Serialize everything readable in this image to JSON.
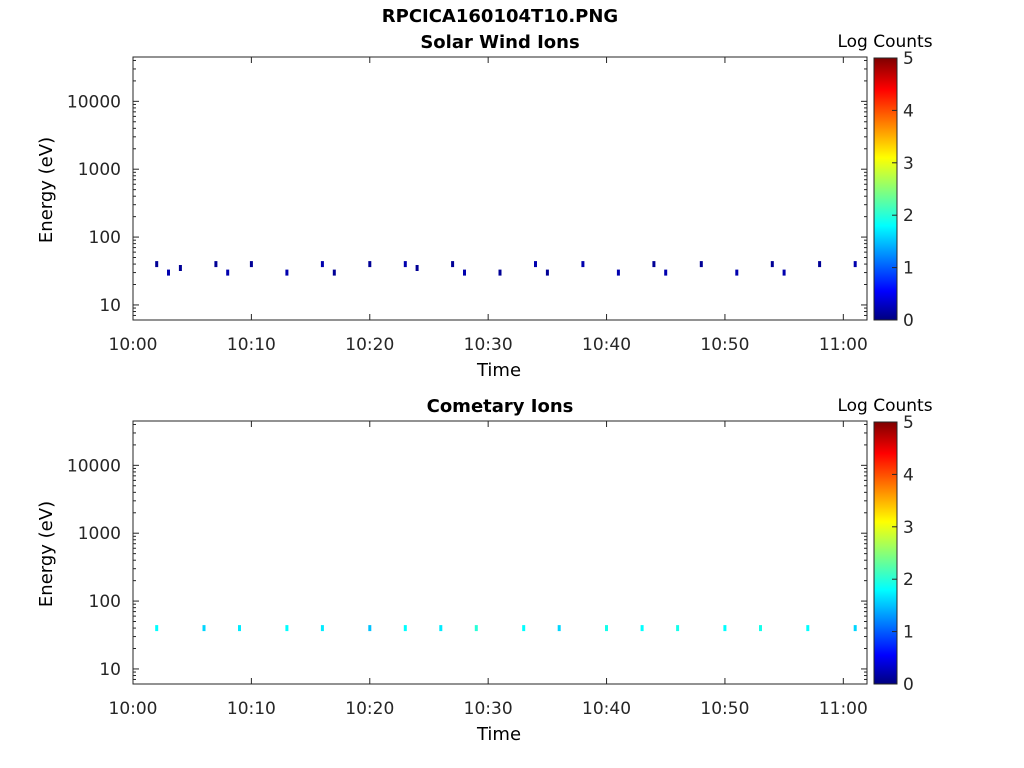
{
  "figure": {
    "title": "RPCICA160104T10.PNG"
  },
  "colors": {
    "axis": "#262626",
    "background": "#ffffff",
    "colormap": [
      "#00007f",
      "#0000ff",
      "#00ffff",
      "#ffff00",
      "#ff0000",
      "#7f0000"
    ]
  },
  "chart_data": [
    {
      "type": "heatmap",
      "title": "Solar Wind Ions",
      "xlabel": "Time",
      "ylabel": "Energy (eV)",
      "y_scale": "log",
      "xlim": [
        "10:00",
        "11:02"
      ],
      "ylim": [
        6,
        45000
      ],
      "x_ticks": [
        "10:00",
        "10:10",
        "10:20",
        "10:30",
        "10:40",
        "10:50",
        "11:00"
      ],
      "y_ticks": [
        10,
        100,
        1000,
        10000
      ],
      "y_tick_labels": [
        "10",
        "100",
        "1000",
        "10000"
      ],
      "colorbar": {
        "label": "Log Counts",
        "range": [
          0,
          5
        ],
        "ticks": [
          "0",
          "1",
          "2",
          "3",
          "4",
          "5"
        ]
      },
      "series": [
        {
          "values": [
            [
              "10:02",
              40,
              0.1
            ],
            [
              "10:03",
              30,
              0.2
            ],
            [
              "10:04",
              35,
              0.1
            ],
            [
              "10:07",
              40,
              0.1
            ],
            [
              "10:08",
              30,
              0.2
            ],
            [
              "10:10",
              40,
              0.1
            ],
            [
              "10:13",
              30,
              0.2
            ],
            [
              "10:16",
              40,
              0.2
            ],
            [
              "10:17",
              30,
              0.1
            ],
            [
              "10:20",
              40,
              0.1
            ],
            [
              "10:23",
              40,
              0.2
            ],
            [
              "10:24",
              35,
              0.1
            ],
            [
              "10:27",
              40,
              0.1
            ],
            [
              "10:28",
              30,
              0.2
            ],
            [
              "10:31",
              30,
              0.1
            ],
            [
              "10:34",
              40,
              0.2
            ],
            [
              "10:35",
              30,
              0.1
            ],
            [
              "10:38",
              40,
              0.2
            ],
            [
              "10:41",
              30,
              0.2
            ],
            [
              "10:44",
              40,
              0.1
            ],
            [
              "10:45",
              30,
              0.2
            ],
            [
              "10:48",
              40,
              0.1
            ],
            [
              "10:51",
              30,
              0.2
            ],
            [
              "10:54",
              40,
              0.1
            ],
            [
              "10:55",
              30,
              0.2
            ],
            [
              "10:58",
              40,
              0.1
            ],
            [
              "11:01",
              40,
              0.2
            ]
          ]
        }
      ]
    },
    {
      "type": "heatmap",
      "title": "Cometary Ions",
      "xlabel": "Time",
      "ylabel": "Energy (eV)",
      "y_scale": "log",
      "xlim": [
        "10:00",
        "11:02"
      ],
      "ylim": [
        6,
        45000
      ],
      "x_ticks": [
        "10:00",
        "10:10",
        "10:20",
        "10:30",
        "10:40",
        "10:50",
        "11:00"
      ],
      "y_ticks": [
        10,
        100,
        1000,
        10000
      ],
      "y_tick_labels": [
        "10",
        "100",
        "1000",
        "10000"
      ],
      "colorbar": {
        "label": "Log Counts",
        "range": [
          0,
          5
        ],
        "ticks": [
          "0",
          "1",
          "2",
          "3",
          "4",
          "5"
        ]
      },
      "series": [
        {
          "values": [
            [
              "10:02",
              40,
              1.8
            ],
            [
              "10:06",
              40,
              1.6
            ],
            [
              "10:09",
              40,
              1.7
            ],
            [
              "10:13",
              40,
              1.8
            ],
            [
              "10:16",
              40,
              1.7
            ],
            [
              "10:20",
              40,
              1.5
            ],
            [
              "10:23",
              40,
              1.8
            ],
            [
              "10:26",
              40,
              1.7
            ],
            [
              "10:29",
              40,
              2.0
            ],
            [
              "10:33",
              40,
              1.8
            ],
            [
              "10:36",
              40,
              1.6
            ],
            [
              "10:40",
              40,
              1.9
            ],
            [
              "10:43",
              40,
              1.8
            ],
            [
              "10:46",
              40,
              1.9
            ],
            [
              "10:50",
              40,
              1.8
            ],
            [
              "10:53",
              40,
              1.9
            ],
            [
              "10:57",
              40,
              1.8
            ],
            [
              "11:01",
              40,
              1.6
            ]
          ]
        }
      ]
    }
  ]
}
